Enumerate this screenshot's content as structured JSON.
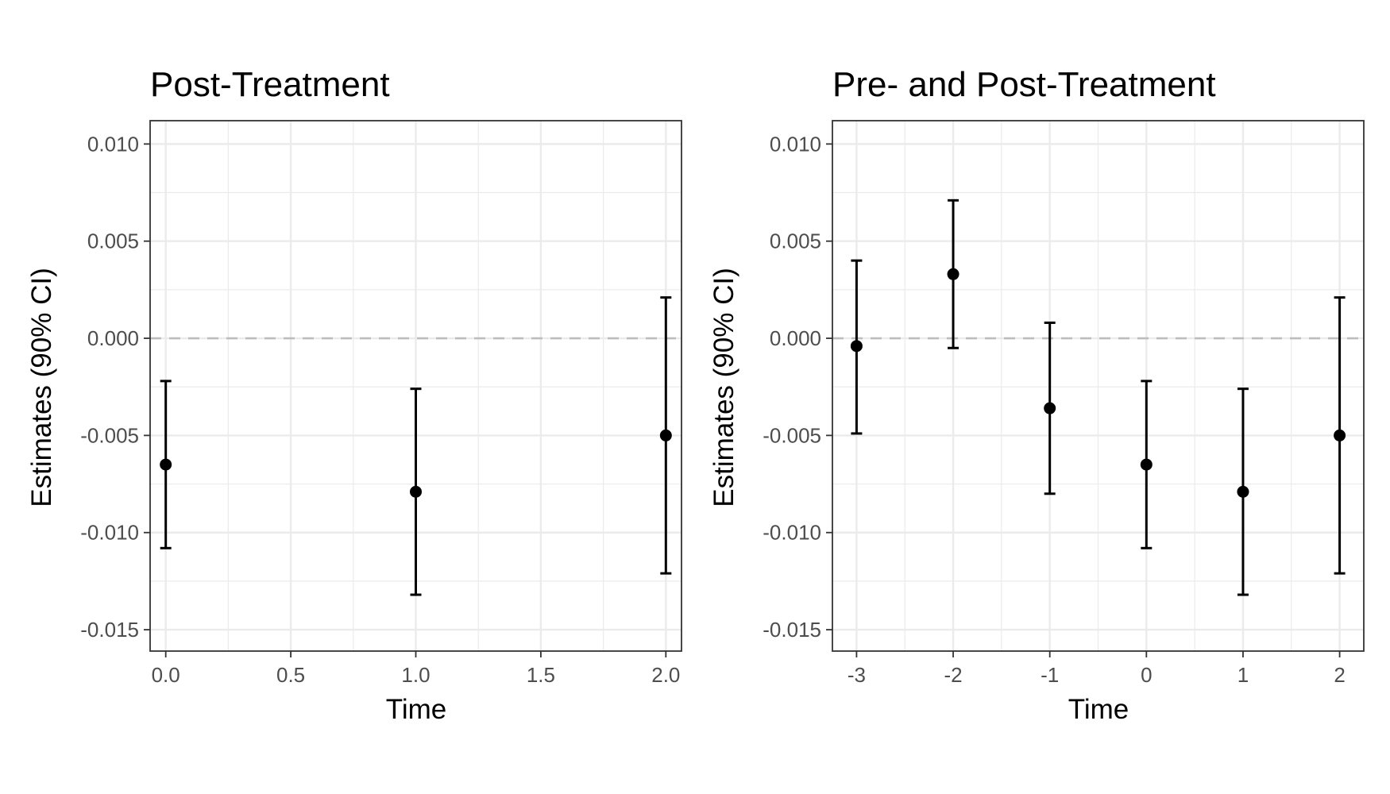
{
  "chart_data": [
    {
      "type": "scatter",
      "title": "Post-Treatment",
      "xlabel": "Time",
      "ylabel": "Estimates (90% CI)",
      "xlim": [
        -0.0625,
        2.0625
      ],
      "ylim": [
        -0.0161,
        0.0112
      ],
      "x_ticks": [
        0,
        0.5,
        1,
        1.5,
        2
      ],
      "x_tick_labels": [
        "0.0",
        "0.5",
        "1.0",
        "1.5",
        "2.0"
      ],
      "y_ticks": [
        -0.015,
        -0.01,
        -0.005,
        0,
        0.005,
        0.01
      ],
      "y_tick_labels": [
        "-0.015",
        "-0.010",
        "-0.005",
        "0.000",
        "0.005",
        "0.010"
      ],
      "reference_line": 0,
      "grid": true,
      "points": [
        {
          "x": 0,
          "y": -0.0065,
          "lower": -0.0108,
          "upper": -0.0022
        },
        {
          "x": 1,
          "y": -0.0079,
          "lower": -0.0132,
          "upper": -0.0026
        },
        {
          "x": 2,
          "y": -0.005,
          "lower": -0.0121,
          "upper": 0.0021
        }
      ]
    },
    {
      "type": "scatter",
      "title": "Pre- and Post-Treatment",
      "xlabel": "Time",
      "ylabel": "Estimates (90% CI)",
      "xlim": [
        -3.25,
        2.25
      ],
      "ylim": [
        -0.0161,
        0.0112
      ],
      "x_ticks": [
        -3,
        -2,
        -1,
        0,
        1,
        2
      ],
      "x_tick_labels": [
        "-3",
        "-2",
        "-1",
        "0",
        "1",
        "2"
      ],
      "y_ticks": [
        -0.015,
        -0.01,
        -0.005,
        0,
        0.005,
        0.01
      ],
      "y_tick_labels": [
        "-0.015",
        "-0.010",
        "-0.005",
        "0.000",
        "0.005",
        "0.010"
      ],
      "reference_line": 0,
      "grid": true,
      "points": [
        {
          "x": -3,
          "y": -0.0004,
          "lower": -0.0049,
          "upper": 0.004
        },
        {
          "x": -2,
          "y": 0.0033,
          "lower": -0.0005,
          "upper": 0.0071
        },
        {
          "x": -1,
          "y": -0.0036,
          "lower": -0.008,
          "upper": 0.0008
        },
        {
          "x": 0,
          "y": -0.0065,
          "lower": -0.0108,
          "upper": -0.0022
        },
        {
          "x": 1,
          "y": -0.0079,
          "lower": -0.0132,
          "upper": -0.0026
        },
        {
          "x": 2,
          "y": -0.005,
          "lower": -0.0121,
          "upper": 0.0021
        }
      ]
    }
  ]
}
